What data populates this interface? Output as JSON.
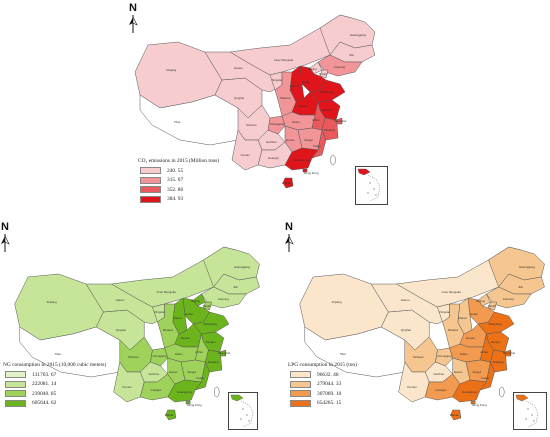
{
  "compass_letter": "N",
  "provinces": {
    "xinjiang": "Xinjiang",
    "tibet": "Tibet",
    "qinghai": "Qinghai",
    "gansu": "Gansu",
    "inner_mongolia": "Inner Mongolia",
    "heilongjiang": "Heilongjiang",
    "jilin": "Jilin",
    "liaoning": "Liaoning",
    "beijing": "Beijing",
    "tianjin": "Tianjin",
    "hebei": "Hebei",
    "shanxi": "Shanxi",
    "shandong": "Shandong",
    "henan": "Henan",
    "jiangsu": "Jiangsu",
    "anhui": "Anhui",
    "shanghai": "Shanghai",
    "zhejiang": "Zhejiang",
    "hubei": "Hubei",
    "hunan": "Hunan",
    "jiangxi": "Jiangxi",
    "fujian": "Fujian",
    "guangdong": "Guangdong",
    "guangxi": "Guangxi",
    "yunnan": "Yunnan",
    "guizhou": "Guizhou",
    "sichuan": "Sichuan",
    "chongqing": "Chongqing",
    "shaanxi": "Shaanxi",
    "ningxia": "Ningxia",
    "hainan": "Hainan",
    "hong_kong": "Hong Kong",
    "taiwan": "Taiwan"
  },
  "maps": [
    {
      "id": "co2",
      "legend_title": "CO₂ emissions in 2015 (Million tons)",
      "classes": [
        {
          "label": "240. 55",
          "color": "#f7cccf"
        },
        {
          "label": "315. 07",
          "color": "#f29598"
        },
        {
          "label": "352. 86",
          "color": "#ea5a5c"
        },
        {
          "label": "384. 93",
          "color": "#e0141b"
        }
      ],
      "inset_island_color": "#e0141b"
    },
    {
      "id": "ng",
      "legend_title": "NG consumption in 2015 (10,000 cubic meters)",
      "classes": [
        {
          "label": "131703. 67",
          "color": "#e3f2c8"
        },
        {
          "label": "222081. 14",
          "color": "#c6e598"
        },
        {
          "label": "239040. 85",
          "color": "#9fd25a"
        },
        {
          "label": "605644. 62",
          "color": "#6cb41c"
        }
      ],
      "inset_island_color": "#6cb41c"
    },
    {
      "id": "lpg",
      "legend_title": "LPG consumption in 2015 (ton)",
      "classes": [
        {
          "label": "96632. 48",
          "color": "#fbe6cc"
        },
        {
          "label": "279044. 33",
          "color": "#f6c690"
        },
        {
          "label": "307069. 10",
          "color": "#f29a4f"
        },
        {
          "label": "654265. 15",
          "color": "#ec7016"
        }
      ],
      "inset_island_color": "#ec7016"
    }
  ]
}
